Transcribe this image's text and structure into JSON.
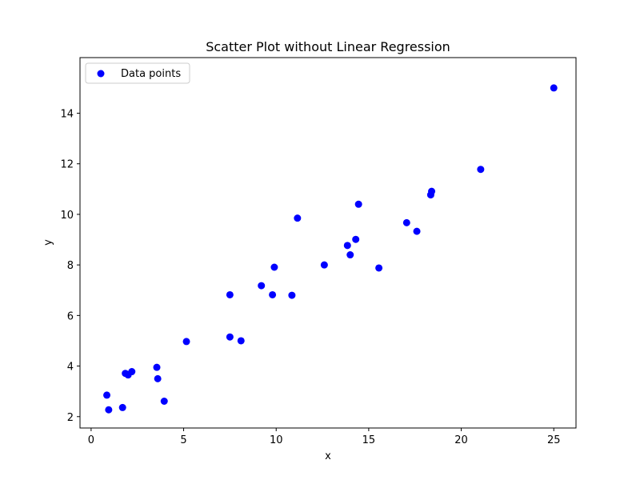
{
  "chart_data": {
    "type": "scatter",
    "title": "Scatter Plot without Linear Regression",
    "xlabel": "x",
    "ylabel": "y",
    "xlim": [
      -0.6,
      26.2
    ],
    "ylim": [
      1.55,
      16.2
    ],
    "xticks": [
      0,
      5,
      10,
      15,
      20,
      25
    ],
    "yticks": [
      2,
      4,
      6,
      8,
      10,
      12,
      14
    ],
    "grid": false,
    "legend_position": "top-left",
    "series": [
      {
        "name": "Data points",
        "color": "#0000ff",
        "marker": "circle",
        "points": [
          {
            "x": 0.85,
            "y": 2.85
          },
          {
            "x": 0.95,
            "y": 2.27
          },
          {
            "x": 1.7,
            "y": 2.36
          },
          {
            "x": 1.85,
            "y": 3.71
          },
          {
            "x": 2.0,
            "y": 3.65
          },
          {
            "x": 2.2,
            "y": 3.78
          },
          {
            "x": 3.55,
            "y": 3.95
          },
          {
            "x": 3.6,
            "y": 3.5
          },
          {
            "x": 3.95,
            "y": 2.61
          },
          {
            "x": 5.15,
            "y": 4.97
          },
          {
            "x": 7.5,
            "y": 6.82
          },
          {
            "x": 7.5,
            "y": 5.15
          },
          {
            "x": 8.1,
            "y": 5.0
          },
          {
            "x": 9.2,
            "y": 7.18
          },
          {
            "x": 9.8,
            "y": 6.82
          },
          {
            "x": 9.9,
            "y": 7.91
          },
          {
            "x": 10.85,
            "y": 6.8
          },
          {
            "x": 11.15,
            "y": 9.85
          },
          {
            "x": 12.6,
            "y": 8.0
          },
          {
            "x": 13.85,
            "y": 8.77
          },
          {
            "x": 14.0,
            "y": 8.4
          },
          {
            "x": 14.3,
            "y": 9.01
          },
          {
            "x": 14.45,
            "y": 10.4
          },
          {
            "x": 15.55,
            "y": 7.88
          },
          {
            "x": 17.05,
            "y": 9.67
          },
          {
            "x": 17.6,
            "y": 9.33
          },
          {
            "x": 18.35,
            "y": 10.77
          },
          {
            "x": 18.4,
            "y": 10.91
          },
          {
            "x": 21.05,
            "y": 11.78
          },
          {
            "x": 25.0,
            "y": 15.0
          }
        ]
      }
    ]
  }
}
